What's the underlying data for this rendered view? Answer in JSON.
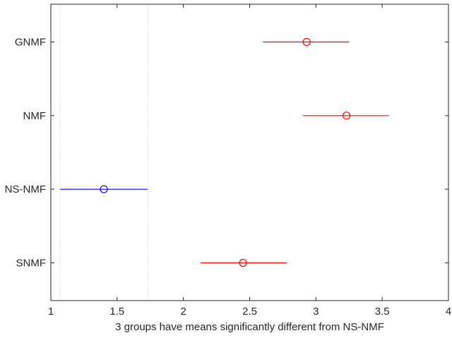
{
  "chart_data": {
    "type": "scatter",
    "subtype": "multiple-comparison-interval",
    "xlabel": "3 groups have means significantly different from NS-NMF",
    "xlim": [
      1,
      4
    ],
    "xticks": [
      1,
      1.5,
      2,
      2.5,
      3,
      3.5,
      4
    ],
    "xtick_labels": [
      "1",
      "1.5",
      "2",
      "2.5",
      "3",
      "3.5",
      "4"
    ],
    "categories": [
      "GNMF",
      "NMF",
      "NS-NMF",
      "SNMF"
    ],
    "selected": "NS-NMF",
    "reference_lines": [
      1.07,
      1.73
    ],
    "groups": [
      {
        "label": "GNMF",
        "mean": 2.93,
        "lower": 2.6,
        "upper": 3.25,
        "color": "#ff0000"
      },
      {
        "label": "NMF",
        "mean": 3.23,
        "lower": 2.9,
        "upper": 3.55,
        "color": "#ff0000"
      },
      {
        "label": "NS-NMF",
        "mean": 1.4,
        "lower": 1.07,
        "upper": 1.73,
        "color": "#0000ff"
      },
      {
        "label": "SNMF",
        "mean": 2.45,
        "lower": 2.13,
        "upper": 2.78,
        "color": "#ff0000"
      }
    ],
    "grid": false,
    "legend": "none"
  }
}
